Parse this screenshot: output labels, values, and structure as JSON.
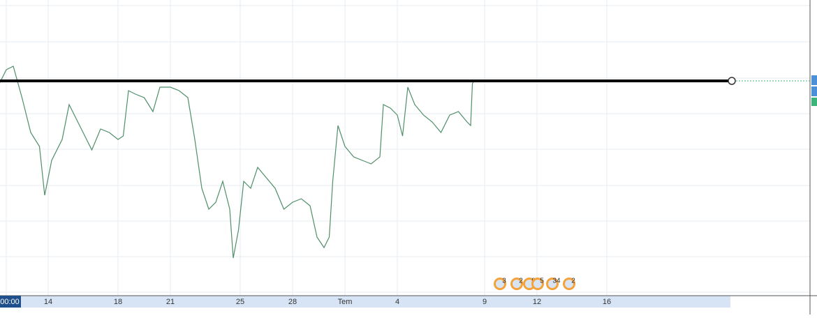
{
  "chart_data": {
    "type": "line",
    "x": [
      11.2,
      11.6,
      12,
      12.5,
      13,
      13.5,
      13.8,
      14.2,
      14.8,
      15.2,
      15.6,
      16,
      16.5,
      17,
      17.5,
      18,
      18.3,
      18.6,
      19,
      19.5,
      20,
      20.4,
      21,
      21.5,
      22,
      22.4,
      22.8,
      23.2,
      23.6,
      24,
      24.4,
      24.6,
      24.9,
      25.2,
      25.6,
      26,
      26.5,
      27,
      27.5,
      28,
      28.5,
      29,
      29.4,
      29.8,
      30.1,
      30.3,
      30.6,
      31,
      31.5,
      32,
      32.5,
      33,
      33.2,
      33.6,
      34,
      34.3,
      34.6,
      35,
      35.5,
      36,
      36.5,
      37,
      37.5,
      38,
      38.2,
      38.3,
      38.4
    ],
    "series": [
      {
        "color": "#4f8f6a",
        "values": [
          300,
          320,
          325,
          280,
          230,
          210,
          140,
          190,
          220,
          270,
          250,
          230,
          205,
          235,
          230,
          220,
          225,
          290,
          285,
          280,
          260,
          295,
          295,
          290,
          280,
          220,
          150,
          120,
          130,
          160,
          120,
          50,
          90,
          160,
          150,
          180,
          165,
          150,
          120,
          130,
          135,
          125,
          80,
          65,
          80,
          160,
          240,
          210,
          195,
          190,
          185,
          195,
          270,
          265,
          255,
          225,
          295,
          270,
          255,
          245,
          230,
          255,
          260,
          245,
          240,
          300,
          305
        ]
      }
    ],
    "xlim": [
      11.24,
      57.12
    ],
    "ylim": [
      0,
      420
    ],
    "xticks": [
      {
        "value": 11.6,
        "label": "00:00"
      },
      14,
      18,
      21,
      25,
      28,
      {
        "value": 31,
        "label": "Tem"
      },
      {
        "value": 34,
        "label": "4"
      },
      {
        "value": 39,
        "label": "9"
      },
      {
        "value": 42,
        "label": "12"
      },
      {
        "value": 46,
        "label": "16"
      }
    ],
    "hline": 304,
    "events": [
      "3",
      "2",
      "8",
      "5",
      "34",
      "2"
    ],
    "grid": true
  }
}
